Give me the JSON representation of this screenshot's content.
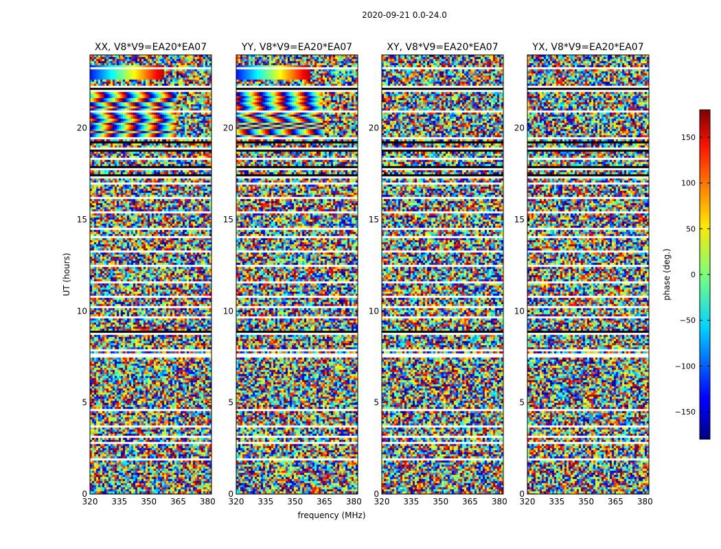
{
  "chart_data": {
    "type": "heatmap",
    "title": "2020-09-21 0.0-24.0",
    "xlabel": "frequency (MHz)",
    "ylabel": "UT (hours)",
    "xlim": [
      320,
      382
    ],
    "ylim": [
      0,
      24
    ],
    "xticks": [
      320,
      335,
      350,
      365,
      380
    ],
    "yticks": [
      0,
      5,
      10,
      15,
      20
    ],
    "panels": [
      {
        "name": "XX",
        "title": "XX, V8*V9=EA20*EA07"
      },
      {
        "name": "YY",
        "title": "YY, V8*V9=EA20*EA07"
      },
      {
        "name": "XY",
        "title": "XY, V8*V9=EA20*EA07"
      },
      {
        "name": "YX",
        "title": "YX, V8*V9=EA20*EA07"
      }
    ],
    "colorbar": {
      "label": "phase (deg.)",
      "range": [
        -180,
        180
      ],
      "ticks": [
        -150,
        -100,
        -50,
        0,
        50,
        100,
        150
      ],
      "colormap": "jet"
    },
    "gaps_hours": [
      [
        1.95,
        2.05
      ],
      [
        2.85,
        2.92
      ],
      [
        3.15,
        3.22
      ],
      [
        3.42,
        3.5
      ],
      [
        3.72,
        3.8
      ],
      [
        4.6,
        4.66
      ],
      [
        5.15,
        5.2
      ],
      [
        5.9,
        5.96
      ],
      [
        6.4,
        6.45
      ],
      [
        6.95,
        7.0
      ],
      [
        7.55,
        7.62
      ],
      [
        7.9,
        8.0
      ],
      [
        8.15,
        8.2
      ],
      [
        8.5,
        8.57
      ],
      [
        9.2,
        9.26
      ],
      [
        9.7,
        9.75
      ],
      [
        10.25,
        10.3
      ],
      [
        10.8,
        10.86
      ],
      [
        11.6,
        11.66
      ],
      [
        12.45,
        12.55
      ],
      [
        13.3,
        13.35
      ],
      [
        14.1,
        14.16
      ],
      [
        14.55,
        14.6
      ],
      [
        15.45,
        15.5
      ],
      [
        16.2,
        16.26
      ],
      [
        16.5,
        16.56
      ],
      [
        17.0,
        17.06
      ],
      [
        17.8,
        17.86
      ],
      [
        18.35,
        18.4
      ],
      [
        18.9,
        18.98
      ],
      [
        19.45,
        19.52
      ],
      [
        20.45,
        20.5
      ],
      [
        20.95,
        21.0
      ],
      [
        21.45,
        21.5
      ],
      [
        22.05,
        22.1
      ],
      [
        22.55,
        22.62
      ],
      [
        23.3,
        23.35
      ]
    ],
    "flagged_hours": [
      [
        7.6,
        7.75
      ],
      [
        8.8,
        8.95
      ],
      [
        17.3,
        17.55
      ],
      [
        17.9,
        18.0
      ],
      [
        18.75,
        18.85
      ],
      [
        19.2,
        19.35
      ],
      [
        22.2,
        22.35
      ]
    ]
  }
}
